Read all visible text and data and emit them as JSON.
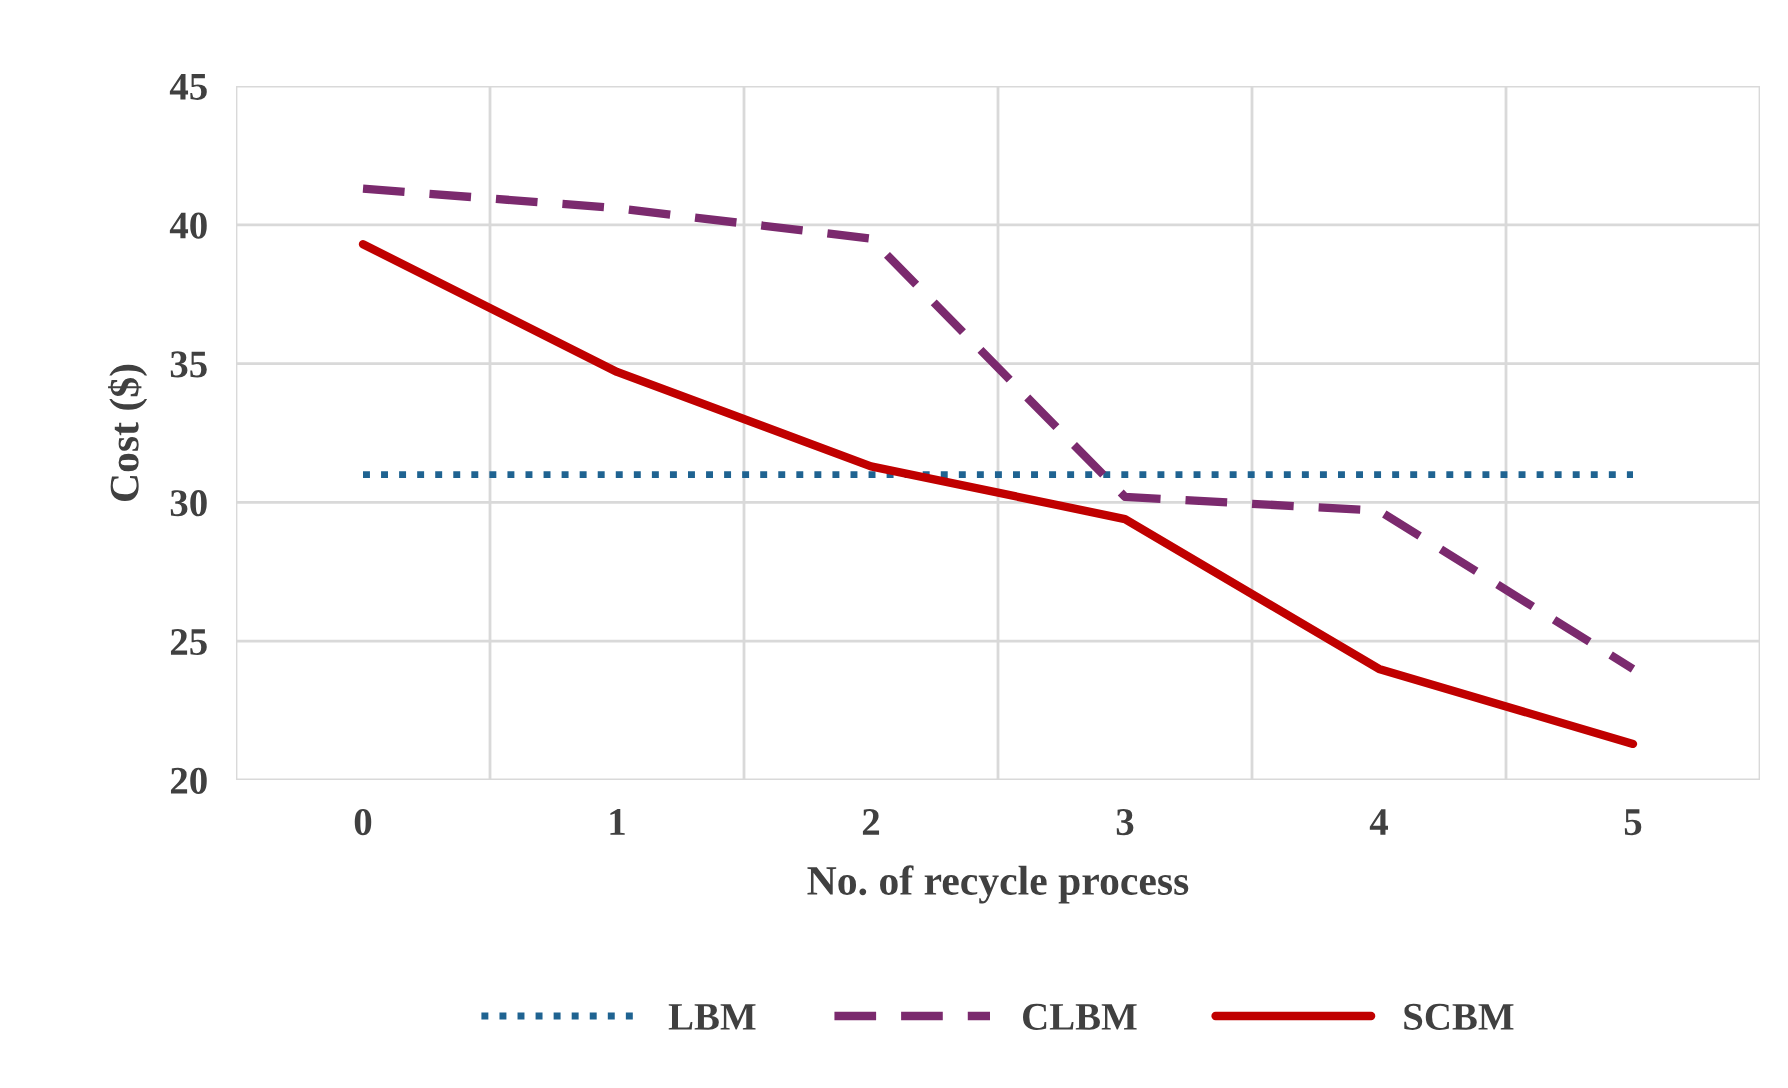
{
  "chart_data": {
    "type": "line",
    "xlabel": "No. of recycle process",
    "ylabel": "Cost ($)",
    "categories": [
      "0",
      "1",
      "2",
      "3",
      "4",
      "5"
    ],
    "series": [
      {
        "name": "LBM",
        "color": "#1f6391",
        "line_style": "dotted",
        "values": [
          31.0,
          31.0,
          31.0,
          31.0,
          31.0,
          31.0
        ]
      },
      {
        "name": "CLBM",
        "color": "#7b2a6e",
        "line_style": "dashed",
        "values": [
          41.3,
          40.6,
          39.5,
          30.2,
          29.7,
          24.0
        ]
      },
      {
        "name": "SCBM",
        "color": "#c00000",
        "line_style": "solid",
        "values": [
          39.3,
          34.7,
          31.3,
          29.4,
          24.0,
          21.3
        ]
      }
    ],
    "ylim": [
      20,
      45
    ],
    "yticks": [
      20,
      25,
      30,
      35,
      40,
      45
    ],
    "grid": true,
    "legend": "bottom",
    "marker": "none"
  }
}
